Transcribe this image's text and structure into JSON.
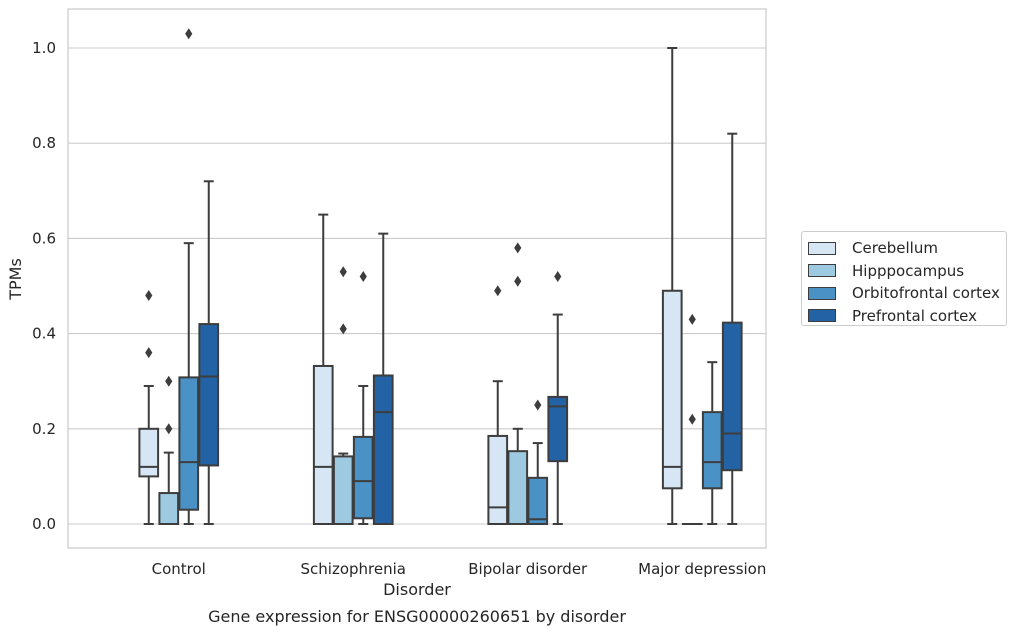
{
  "chart_data": {
    "type": "boxplot",
    "title": "Gene expression for ENSG00000260651 by disorder",
    "xlabel": "Disorder",
    "ylabel": "TPMs",
    "ylim": [
      -0.05,
      1.08
    ],
    "yticks": [
      "0.0",
      "0.2",
      "0.4",
      "0.6",
      "0.8",
      "1.0"
    ],
    "grid": "horizontal",
    "legend_position": "right",
    "categories": [
      "Control",
      "Schizophrenia",
      "Bipolar disorder",
      "Major depression"
    ],
    "series": [
      {
        "name": "Cerebellum",
        "color": "#d6e6f4",
        "boxes": [
          {
            "whislo": 0.0,
            "q1": 0.1,
            "med": 0.12,
            "q3": 0.2,
            "whishi": 0.29,
            "fliers": [
              0.36,
              0.48
            ]
          },
          {
            "whislo": 0.0,
            "q1": 0.0,
            "med": 0.12,
            "q3": 0.332,
            "whishi": 0.65,
            "fliers": []
          },
          {
            "whislo": 0.0,
            "q1": 0.0,
            "med": 0.035,
            "q3": 0.185,
            "whishi": 0.3,
            "fliers": [
              0.49
            ]
          },
          {
            "whislo": 0.0,
            "q1": 0.075,
            "med": 0.12,
            "q3": 0.49,
            "whishi": 1.0,
            "fliers": []
          }
        ]
      },
      {
        "name": "Hipppocampus",
        "color": "#9ecae1",
        "boxes": [
          {
            "whislo": 0.0,
            "q1": 0.0,
            "med": 0.0,
            "q3": 0.065,
            "whishi": 0.15,
            "fliers": [
              0.2,
              0.3
            ]
          },
          {
            "whislo": 0.0,
            "q1": 0.0,
            "med": 0.0,
            "q3": 0.142,
            "whishi": 0.148,
            "fliers": [
              0.41,
              0.53
            ]
          },
          {
            "whislo": 0.0,
            "q1": 0.0,
            "med": 0.0,
            "q3": 0.153,
            "whishi": 0.2,
            "fliers": [
              0.51,
              0.58
            ]
          },
          {
            "whislo": 0.0,
            "q1": 0.0,
            "med": 0.0,
            "q3": 0.0,
            "whishi": 0.0,
            "fliers": [
              0.22,
              0.43
            ]
          }
        ]
      },
      {
        "name": "Orbitofrontal cortex",
        "color": "#4a92c6",
        "boxes": [
          {
            "whislo": 0.0,
            "q1": 0.03,
            "med": 0.13,
            "q3": 0.308,
            "whishi": 0.59,
            "fliers": [
              1.03
            ]
          },
          {
            "whislo": 0.0,
            "q1": 0.012,
            "med": 0.09,
            "q3": 0.183,
            "whishi": 0.29,
            "fliers": [
              0.52
            ]
          },
          {
            "whislo": 0.0,
            "q1": 0.0,
            "med": 0.01,
            "q3": 0.097,
            "whishi": 0.17,
            "fliers": [
              0.25
            ]
          },
          {
            "whislo": 0.0,
            "q1": 0.075,
            "med": 0.13,
            "q3": 0.235,
            "whishi": 0.34,
            "fliers": []
          }
        ]
      },
      {
        "name": "Prefrontal cortex",
        "color": "#2363a5",
        "boxes": [
          {
            "whislo": 0.0,
            "q1": 0.123,
            "med": 0.31,
            "q3": 0.42,
            "whishi": 0.72,
            "fliers": []
          },
          {
            "whislo": 0.0,
            "q1": 0.0,
            "med": 0.235,
            "q3": 0.312,
            "whishi": 0.61,
            "fliers": []
          },
          {
            "whislo": 0.0,
            "q1": 0.132,
            "med": 0.247,
            "q3": 0.267,
            "whishi": 0.44,
            "fliers": [
              0.52
            ]
          },
          {
            "whislo": 0.0,
            "q1": 0.113,
            "med": 0.19,
            "q3": 0.423,
            "whishi": 0.82,
            "fliers": []
          }
        ]
      }
    ]
  }
}
